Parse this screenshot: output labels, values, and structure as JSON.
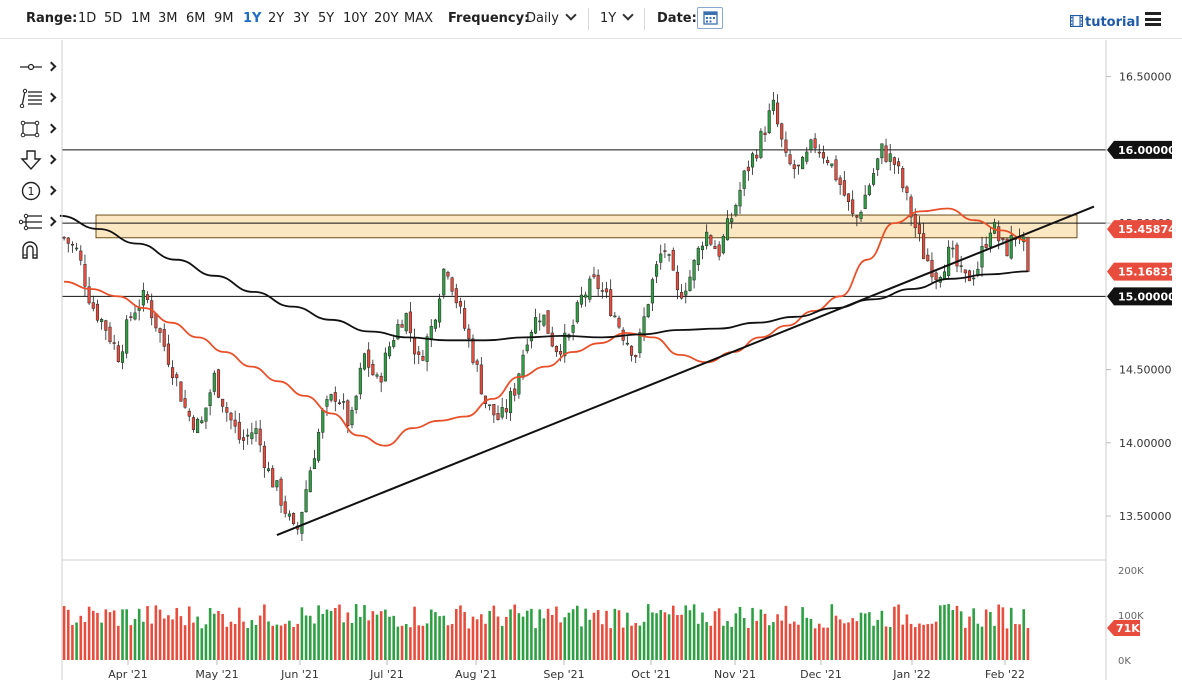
{
  "toolbar": {
    "range_label": "Range:",
    "ranges": [
      "1D",
      "5D",
      "1M",
      "3M",
      "6M",
      "9M",
      "1Y",
      "2Y",
      "3Y",
      "5Y",
      "10Y",
      "20Y",
      "MAX"
    ],
    "active_range": "1Y",
    "frequency_label": "Frequency:",
    "frequency_value": "Daily",
    "period_value": "1Y",
    "date_label": "Date:",
    "tutorial_label": "tutorial"
  },
  "colors": {
    "up": "#2ea043",
    "down": "#e74c3c",
    "ma_fast": "#e8502a",
    "ma_slow": "#111111",
    "zone_fill": "#fbe3b8",
    "zone_border": "#6b4e1a"
  },
  "tool_icons": [
    "line-tool-icon",
    "fib-tool-icon",
    "rectangle-tool-icon",
    "arrow-down-tool-icon",
    "number-tool-icon",
    "pitchfork-tool-icon",
    "magnet-icon"
  ],
  "chart_data": {
    "type": "candlestick",
    "x_labels": [
      "Apr '21",
      "May '21",
      "Jun '21",
      "Jul '21",
      "Aug '21",
      "Sep '21",
      "Oct '21",
      "Nov '21",
      "Dec '21",
      "Jan '22",
      "Feb '22"
    ],
    "y_ticks": [
      "16.50000",
      "16.00000",
      "15.50000",
      "15.00000",
      "14.50000",
      "14.00000",
      "13.50000"
    ],
    "ylim": [
      13.2,
      16.75
    ],
    "volume_ticks": [
      "200K",
      "100K",
      "0K"
    ],
    "volume_ylim": [
      0,
      200
    ],
    "last_volume_label": "71K",
    "price_labels": [
      {
        "value": 16.0,
        "text": "16.00000",
        "color": "#111111"
      },
      {
        "value": 15.45874,
        "text": "15.45874",
        "color": "#e74c3c"
      },
      {
        "value": 15.16831,
        "text": "15.16831",
        "color": "#e74c3c"
      },
      {
        "value": 15.0,
        "text": "15.00000",
        "color": "#111111"
      }
    ],
    "horizontal_lines": [
      16.0,
      15.5,
      15.0
    ],
    "resistance_zone": {
      "top": 15.555,
      "bottom": 15.4
    },
    "trendline": {
      "from": {
        "date_index": 51,
        "value": 13.37
      },
      "to": {
        "date_index": 230,
        "value": 15.42
      }
    },
    "ohlc_path": [
      [
        15.4,
        15.3
      ],
      [
        15.3,
        14.95
      ],
      [
        14.95,
        14.8
      ],
      [
        14.8,
        14.6
      ],
      [
        14.6,
        14.9
      ],
      [
        14.9,
        15.0
      ],
      [
        15.0,
        14.75
      ],
      [
        14.75,
        14.5
      ],
      [
        14.5,
        14.2
      ],
      [
        14.2,
        14.1
      ],
      [
        14.1,
        14.45
      ],
      [
        14.45,
        14.2
      ],
      [
        14.2,
        14.0
      ],
      [
        14.0,
        14.1
      ],
      [
        14.1,
        13.8
      ],
      [
        13.8,
        13.6
      ],
      [
        13.6,
        13.35
      ],
      [
        13.35,
        13.8
      ],
      [
        13.8,
        14.2
      ],
      [
        14.2,
        14.35
      ],
      [
        14.35,
        14.1
      ],
      [
        14.1,
        14.6
      ],
      [
        14.6,
        14.4
      ],
      [
        14.4,
        14.7
      ],
      [
        14.7,
        14.9
      ],
      [
        14.9,
        14.55
      ],
      [
        14.55,
        14.8
      ],
      [
        14.8,
        15.25
      ],
      [
        15.25,
        14.9
      ],
      [
        14.9,
        14.6
      ],
      [
        14.6,
        14.25
      ],
      [
        14.25,
        14.15
      ],
      [
        14.15,
        14.35
      ],
      [
        14.35,
        14.75
      ],
      [
        14.75,
        14.9
      ],
      [
        14.9,
        14.65
      ],
      [
        14.65,
        14.7
      ],
      [
        14.7,
        15.0
      ],
      [
        15.0,
        15.1
      ],
      [
        15.1,
        14.95
      ],
      [
        14.95,
        14.75
      ],
      [
        14.75,
        14.6
      ],
      [
        14.6,
        15.05
      ],
      [
        15.05,
        15.35
      ],
      [
        15.35,
        15.0
      ],
      [
        15.0,
        15.15
      ],
      [
        15.15,
        15.45
      ],
      [
        15.45,
        15.3
      ],
      [
        15.3,
        15.55
      ],
      [
        15.55,
        15.85
      ],
      [
        15.85,
        16.05
      ],
      [
        16.05,
        16.3
      ],
      [
        16.3,
        15.9
      ],
      [
        15.9,
        15.85
      ],
      [
        15.85,
        16.05
      ],
      [
        16.05,
        15.95
      ],
      [
        15.95,
        15.75
      ],
      [
        15.75,
        15.5
      ],
      [
        15.5,
        15.75
      ],
      [
        15.75,
        16.0
      ],
      [
        16.0,
        15.9
      ],
      [
        15.9,
        15.6
      ],
      [
        15.6,
        15.3
      ],
      [
        15.3,
        15.15
      ],
      [
        15.15,
        15.3
      ],
      [
        15.3,
        15.1
      ],
      [
        15.1,
        15.2
      ],
      [
        15.2,
        15.5
      ],
      [
        15.5,
        15.3
      ],
      [
        15.3,
        15.45
      ],
      [
        15.45,
        15.17
      ]
    ],
    "ma_fast_values": [
      15.1,
      15.05,
      15.0,
      14.92,
      14.82,
      14.72,
      14.62,
      14.52,
      14.42,
      14.32,
      14.2,
      14.05,
      13.98,
      14.1,
      14.15,
      14.18,
      14.3,
      14.45,
      14.52,
      14.62,
      14.68,
      14.75,
      14.72,
      14.6,
      14.55,
      14.62,
      14.72,
      14.8,
      14.9,
      15.0,
      15.25,
      15.5,
      15.58,
      15.6,
      15.52,
      15.45,
      15.38
    ],
    "ma_slow_values": [
      15.55,
      15.46,
      15.36,
      15.25,
      15.14,
      15.03,
      14.93,
      14.84,
      14.76,
      14.72,
      14.7,
      14.7,
      14.72,
      14.73,
      14.72,
      14.74,
      14.77,
      14.78,
      14.82,
      14.86,
      14.92,
      14.98,
      15.05,
      15.12,
      15.15,
      15.17
    ]
  }
}
